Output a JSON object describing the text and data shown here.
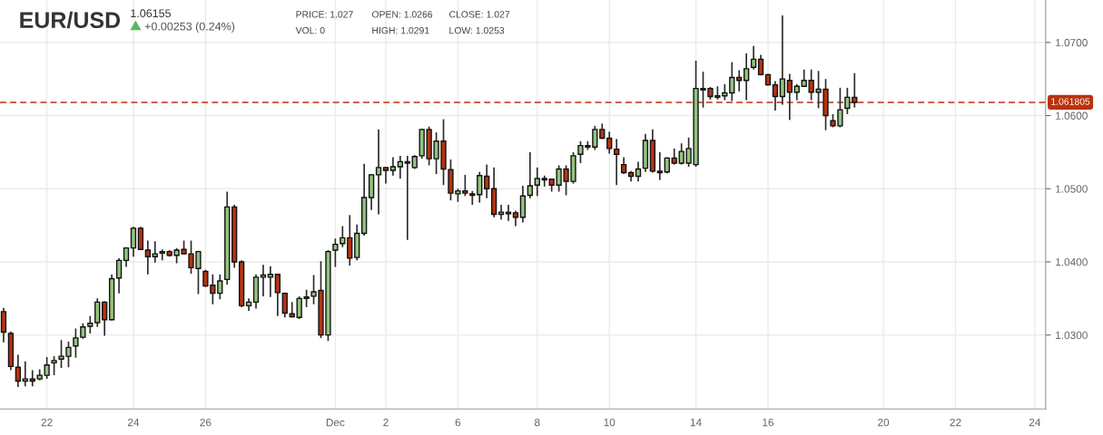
{
  "chart_data": {
    "type": "candlestick",
    "title": "EUR/USD",
    "subtitle": "1.06155",
    "annotations": [
      "PRICE: 1.027",
      "OPEN: 1.0266",
      "CLOSE: 1.027",
      "VOL: 0",
      "HIGH: 1.0291",
      "LOW: 1.0253",
      "+0.00253 (0.24%)"
    ],
    "categories": [
      null,
      null,
      null,
      null,
      null,
      null,
      "22",
      null,
      null,
      null,
      null,
      null,
      null,
      null,
      null,
      null,
      null,
      null,
      "24",
      null,
      null,
      null,
      null,
      null,
      null,
      null,
      null,
      null,
      "26",
      null,
      null,
      null,
      null,
      null,
      null,
      null,
      null,
      null,
      null,
      null,
      null,
      null,
      null,
      null,
      null,
      null,
      "Dec",
      null,
      null,
      null,
      null,
      null,
      null,
      "2",
      null,
      null,
      null,
      null,
      null,
      null,
      null,
      null,
      null,
      "6",
      null,
      null,
      null,
      null,
      null,
      null,
      null,
      null,
      null,
      null,
      "8",
      null,
      null,
      null,
      null,
      null,
      null,
      null,
      null,
      null,
      "10",
      null,
      null,
      null,
      null,
      null,
      null,
      null,
      null,
      null,
      null,
      null,
      "14",
      null,
      null,
      null,
      null,
      null,
      null,
      null,
      null,
      null,
      "16",
      null,
      null,
      null,
      null,
      null,
      null,
      null,
      null,
      null,
      null,
      null,
      null,
      null,
      null,
      null,
      "20",
      null,
      null,
      null,
      null,
      null,
      null,
      null,
      null,
      null,
      "22",
      null,
      null,
      null,
      null,
      null,
      null,
      null,
      null,
      null,
      null,
      "24",
      null
    ],
    "ohlc": [
      [
        1.0332,
        1.0337,
        1.029,
        1.0304
      ],
      [
        1.0302,
        1.0305,
        1.0252,
        1.0257
      ],
      [
        1.0256,
        1.0273,
        1.0229,
        1.0237
      ],
      [
        1.0237,
        1.0264,
        1.023,
        1.024
      ],
      [
        1.024,
        1.0252,
        1.023,
        1.0237
      ],
      [
        1.024,
        1.0253,
        1.0238,
        1.0245
      ],
      [
        1.0245,
        1.027,
        1.024,
        1.0259
      ],
      [
        1.0262,
        1.0271,
        1.0245,
        1.0265
      ],
      [
        1.0267,
        1.0293,
        1.0255,
        1.0271
      ],
      [
        1.0271,
        1.0291,
        1.0256,
        1.0283
      ],
      [
        1.0285,
        1.0309,
        1.0269,
        1.0296
      ],
      [
        1.0297,
        1.0316,
        1.0295,
        1.0311
      ],
      [
        1.0312,
        1.0326,
        1.0302,
        1.0316
      ],
      [
        1.0317,
        1.035,
        1.0311,
        1.0345
      ],
      [
        1.0345,
        1.0346,
        1.0299,
        1.0321
      ],
      [
        1.0321,
        1.0383,
        1.032,
        1.0377
      ],
      [
        1.0378,
        1.0405,
        1.0357,
        1.0402
      ],
      [
        1.0402,
        1.042,
        1.0393,
        1.0419
      ],
      [
        1.0419,
        1.0448,
        1.0407,
        1.0446
      ],
      [
        1.0446,
        1.0448,
        1.0416,
        1.0417
      ],
      [
        1.0416,
        1.0429,
        1.0383,
        1.0407
      ],
      [
        1.0407,
        1.0428,
        1.0399,
        1.0411
      ],
      [
        1.0412,
        1.0417,
        1.0402,
        1.0414
      ],
      [
        1.0414,
        1.0416,
        1.0407,
        1.0409
      ],
      [
        1.0409,
        1.0419,
        1.0398,
        1.0416
      ],
      [
        1.0417,
        1.0429,
        1.041,
        1.0411
      ],
      [
        1.0411,
        1.0429,
        1.0384,
        1.0392
      ],
      [
        1.0391,
        1.0415,
        1.0356,
        1.0414
      ],
      [
        1.0387,
        1.0389,
        1.0366,
        1.0367
      ],
      [
        1.0368,
        1.0383,
        1.0342,
        1.0357
      ],
      [
        1.0357,
        1.0383,
        1.0349,
        1.0374
      ],
      [
        1.0376,
        1.0496,
        1.0369,
        1.0475
      ],
      [
        1.0475,
        1.0478,
        1.0392,
        1.04
      ],
      [
        1.04,
        1.0402,
        1.0338,
        1.034
      ],
      [
        1.034,
        1.035,
        1.0333,
        1.0345
      ],
      [
        1.0345,
        1.0383,
        1.0336,
        1.0379
      ],
      [
        1.0379,
        1.0396,
        1.0353,
        1.0382
      ],
      [
        1.0379,
        1.0394,
        1.0352,
        1.0383
      ],
      [
        1.0383,
        1.0384,
        1.0326,
        1.0358
      ],
      [
        1.0357,
        1.0358,
        1.0324,
        1.033
      ],
      [
        1.0329,
        1.0345,
        1.0324,
        1.0325
      ],
      [
        1.0324,
        1.0353,
        1.0322,
        1.035
      ],
      [
        1.035,
        1.0362,
        1.0338,
        1.0352
      ],
      [
        1.0353,
        1.0382,
        1.0342,
        1.0359
      ],
      [
        1.0361,
        1.0401,
        1.0296,
        1.03
      ],
      [
        1.03,
        1.0416,
        1.0292,
        1.0414
      ],
      [
        1.0416,
        1.0432,
        1.0393,
        1.0424
      ],
      [
        1.0425,
        1.0449,
        1.042,
        1.0433
      ],
      [
        1.0433,
        1.0464,
        1.0395,
        1.0405
      ],
      [
        1.0406,
        1.0451,
        1.0402,
        1.0439
      ],
      [
        1.0439,
        1.0534,
        1.0436,
        1.0488
      ],
      [
        1.0488,
        1.052,
        1.0471,
        1.0519
      ],
      [
        1.0519,
        1.0581,
        1.0465,
        1.0529
      ],
      [
        1.0529,
        1.053,
        1.0507,
        1.0525
      ],
      [
        1.0525,
        1.0543,
        1.0518,
        1.053
      ],
      [
        1.053,
        1.0545,
        1.0514,
        1.0537
      ],
      [
        1.0537,
        1.0545,
        1.043,
        1.0535
      ],
      [
        1.0529,
        1.0546,
        1.0527,
        1.0544
      ],
      [
        1.0545,
        1.0582,
        1.0541,
        1.0581
      ],
      [
        1.0581,
        1.0585,
        1.0532,
        1.0541
      ],
      [
        1.0541,
        1.0577,
        1.052,
        1.0565
      ],
      [
        1.0565,
        1.0595,
        1.0505,
        1.0527
      ],
      [
        1.0526,
        1.054,
        1.0484,
        1.0494
      ],
      [
        1.0493,
        1.05,
        1.0482,
        1.0497
      ],
      [
        1.0497,
        1.0519,
        1.049,
        1.0494
      ],
      [
        1.0493,
        1.0497,
        1.0478,
        1.0491
      ],
      [
        1.0492,
        1.0523,
        1.0481,
        1.0518
      ],
      [
        1.0517,
        1.0533,
        1.0487,
        1.05
      ],
      [
        1.05,
        1.0529,
        1.0461,
        1.0465
      ],
      [
        1.0465,
        1.0478,
        1.0458,
        1.0468
      ],
      [
        1.0466,
        1.0478,
        1.0456,
        1.0468
      ],
      [
        1.0467,
        1.047,
        1.0449,
        1.0461
      ],
      [
        1.0461,
        1.0504,
        1.0454,
        1.049
      ],
      [
        1.0491,
        1.055,
        1.0487,
        1.0504
      ],
      [
        1.0505,
        1.0529,
        1.049,
        1.0514
      ],
      [
        1.0514,
        1.0518,
        1.0503,
        1.0512
      ],
      [
        1.0513,
        1.0514,
        1.0496,
        1.0505
      ],
      [
        1.0505,
        1.0532,
        1.0496,
        1.0527
      ],
      [
        1.0527,
        1.0532,
        1.0491,
        1.051
      ],
      [
        1.051,
        1.055,
        1.0507,
        1.0545
      ],
      [
        1.0547,
        1.0565,
        1.0535,
        1.0559
      ],
      [
        1.0559,
        1.0565,
        1.0553,
        1.0557
      ],
      [
        1.0557,
        1.0586,
        1.0553,
        1.0581
      ],
      [
        1.0581,
        1.0589,
        1.0568,
        1.0569
      ],
      [
        1.0569,
        1.0578,
        1.0548,
        1.0555
      ],
      [
        1.0554,
        1.0568,
        1.0505,
        1.0547
      ],
      [
        1.0533,
        1.0543,
        1.052,
        1.0522
      ],
      [
        1.0522,
        1.0524,
        1.051,
        1.0517
      ],
      [
        1.0517,
        1.0537,
        1.051,
        1.0527
      ],
      [
        1.0528,
        1.0575,
        1.0523,
        1.0566
      ],
      [
        1.0566,
        1.0581,
        1.0522,
        1.0524
      ],
      [
        1.0524,
        1.055,
        1.0512,
        1.0522
      ],
      [
        1.0523,
        1.0543,
        1.0521,
        1.0542
      ],
      [
        1.0542,
        1.0555,
        1.0533,
        1.0535
      ],
      [
        1.0535,
        1.0562,
        1.0533,
        1.0551
      ],
      [
        1.0535,
        1.057,
        1.053,
        1.0555
      ],
      [
        1.0533,
        1.0675,
        1.053,
        1.0637
      ],
      [
        1.0637,
        1.066,
        1.0611,
        1.0635
      ],
      [
        1.0637,
        1.0639,
        1.0622,
        1.0626
      ],
      [
        1.0625,
        1.064,
        1.0622,
        1.0627
      ],
      [
        1.0627,
        1.0643,
        1.0621,
        1.0631
      ],
      [
        1.0631,
        1.0673,
        1.062,
        1.0652
      ],
      [
        1.0652,
        1.0662,
        1.0633,
        1.0648
      ],
      [
        1.0648,
        1.0685,
        1.0621,
        1.0664
      ],
      [
        1.0666,
        1.0695,
        1.0663,
        1.0677
      ],
      [
        1.0677,
        1.0683,
        1.0655,
        1.0656
      ],
      [
        1.0656,
        1.0657,
        1.0641,
        1.0642
      ],
      [
        1.0642,
        1.0647,
        1.0607,
        1.0626
      ],
      [
        1.0626,
        1.0737,
        1.0615,
        1.065
      ],
      [
        1.0648,
        1.0657,
        1.0594,
        1.0632
      ],
      [
        1.0632,
        1.0643,
        1.0621,
        1.064
      ],
      [
        1.064,
        1.0663,
        1.0639,
        1.0648
      ],
      [
        1.0648,
        1.0663,
        1.0621,
        1.0632
      ],
      [
        1.0632,
        1.0661,
        1.061,
        1.0636
      ],
      [
        1.0636,
        1.065,
        1.058,
        1.06
      ],
      [
        1.0593,
        1.0602,
        1.0584,
        1.0586
      ],
      [
        1.0586,
        1.0638,
        1.0584,
        1.0608
      ],
      [
        1.061,
        1.0638,
        1.0602,
        1.0625
      ],
      [
        1.0625,
        1.0658,
        1.0611,
        1.0618
      ],
      null,
      null,
      null,
      null,
      null,
      null,
      null,
      null,
      null,
      null,
      null,
      null,
      null,
      null,
      null,
      null,
      null,
      null,
      null,
      null,
      null,
      null,
      null,
      null,
      null,
      null
    ],
    "colors": [
      "#b8330f",
      "#b8330f",
      "#b8330f",
      "#93c47d",
      "#b8330f",
      "#93c47d",
      "#93c47d",
      "#93c47d",
      "#93c47d",
      "#93c47d",
      "#93c47d",
      "#93c47d",
      "#93c47d",
      "#93c47d",
      "#b8330f",
      "#93c47d",
      "#93c47d",
      "#93c47d",
      "#93c47d",
      "#b8330f",
      "#b8330f",
      "#93c47d",
      "#93c47d",
      "#b8330f",
      "#93c47d",
      "#b8330f",
      "#b8330f",
      "#93c47d",
      "#b8330f",
      "#b8330f",
      "#93c47d",
      "#93c47d",
      "#b8330f",
      "#b8330f",
      "#93c47d",
      "#93c47d",
      "#93c47d",
      "#93c47d",
      "#b8330f",
      "#b8330f",
      "#b8330f",
      "#93c47d",
      "#93c47d",
      "#93c47d",
      "#b8330f",
      "#93c47d",
      "#93c47d",
      "#93c47d",
      "#b8330f",
      "#93c47d",
      "#93c47d",
      "#93c47d",
      "#93c47d",
      "#b8330f",
      "#93c47d",
      "#93c47d",
      "#b8330f",
      "#93c47d",
      "#93c47d",
      "#b8330f",
      "#93c47d",
      "#b8330f",
      "#b8330f",
      "#93c47d",
      "#b8330f",
      "#b8330f",
      "#93c47d",
      "#b8330f",
      "#b8330f",
      "#93c47d",
      "#93c47d",
      "#b8330f",
      "#93c47d",
      "#93c47d",
      "#93c47d",
      "#b8330f",
      "#b8330f",
      "#93c47d",
      "#b8330f",
      "#93c47d",
      "#93c47d",
      "#b8330f",
      "#93c47d",
      "#b8330f",
      "#b8330f",
      "#b8330f",
      "#b8330f",
      "#b8330f",
      "#93c47d",
      "#93c47d",
      "#b8330f",
      "#b8330f",
      "#93c47d",
      "#b8330f",
      "#93c47d",
      "#93c47d",
      "#93c47d",
      "#b8330f",
      "#b8330f",
      "#93c47d",
      "#93c47d",
      "#93c47d",
      "#b8330f",
      "#93c47d",
      "#93c47d",
      "#b8330f",
      "#b8330f",
      "#b8330f",
      "#93c47d",
      "#b8330f",
      "#93c47d",
      "#93c47d",
      "#b8330f",
      "#93c47d",
      "#b8330f",
      "#b8330f",
      "#93c47d",
      "#93c47d",
      "#b8330f",
      null,
      null,
      null,
      null,
      null,
      null,
      null,
      null,
      null,
      null,
      null,
      null,
      null,
      null,
      null,
      null,
      null,
      null,
      null,
      null,
      null,
      null,
      null,
      null,
      null,
      null
    ],
    "ylim": [
      1.0199,
      1.0758
    ],
    "yticks": [
      {
        "value": 1.03,
        "label": "1.0300"
      },
      {
        "value": 1.04,
        "label": "1.0400"
      },
      {
        "value": 1.05,
        "label": "1.0500"
      },
      {
        "value": 1.06,
        "label": "1.0600"
      },
      {
        "value": 1.07,
        "label": "1.0700"
      }
    ],
    "ref_lines": [
      {
        "axis": "y",
        "value": 1.061805,
        "label": "1.061805",
        "color": "#b8330f",
        "line_style": "dashed"
      }
    ],
    "grid": true
  }
}
